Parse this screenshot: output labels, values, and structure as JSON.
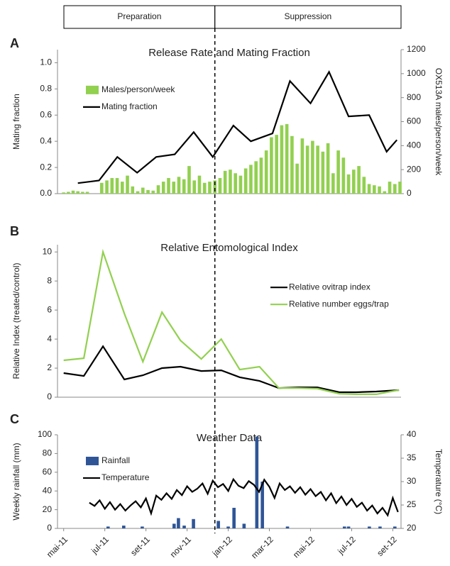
{
  "phases": [
    "Preparation",
    "Suppression"
  ],
  "phase_boundary": 7.35,
  "chart_data": [
    {
      "type": "bar",
      "panel": "A",
      "title": "Release Rate and Mating Fraction",
      "ylabel": "Mating fraction",
      "y2label": "OX513A males/person/week",
      "xlim": [
        -0.3,
        16.4
      ],
      "ylim": [
        0,
        1.1
      ],
      "yticks": [
        {
          "value": 0,
          "label": "0.0"
        },
        0.2,
        0.4,
        0.6,
        0.8,
        {
          "value": 1,
          "label": "1.0"
        }
      ],
      "y2lim": [
        0,
        1200
      ],
      "y2ticks": [
        0,
        200,
        400,
        600,
        800,
        1000,
        1200
      ],
      "legend": "upper left",
      "series": [
        {
          "name": "Males/person/week",
          "type": "bar",
          "axis": "y2",
          "color": "#92d050",
          "x": [
            0,
            0.23,
            0.46,
            0.69,
            0.92,
            1.15,
            1.85,
            2.1,
            2.35,
            2.6,
            2.85,
            3.1,
            3.35,
            3.6,
            3.85,
            4.1,
            4.35,
            4.6,
            4.85,
            5.1,
            5.35,
            5.6,
            5.85,
            6.1,
            6.35,
            6.6,
            6.85,
            7.1,
            7.35,
            7.6,
            7.85,
            8.1,
            8.35,
            8.6,
            8.85,
            9.1,
            9.35,
            9.6,
            9.85,
            10.1,
            10.35,
            10.6,
            10.85,
            11.1,
            11.35,
            11.6,
            11.85,
            12.1,
            12.35,
            12.6,
            12.85,
            13.1,
            13.35,
            13.6,
            13.85,
            14.1,
            14.35,
            14.6,
            14.85,
            15.1,
            15.35,
            15.6,
            15.85,
            16.1,
            16.35
          ],
          "values": [
            10,
            15,
            25,
            20,
            15,
            15,
            90,
            110,
            130,
            130,
            100,
            150,
            60,
            20,
            50,
            30,
            25,
            70,
            100,
            130,
            100,
            140,
            120,
            230,
            110,
            150,
            90,
            100,
            110,
            130,
            190,
            200,
            170,
            150,
            210,
            240,
            270,
            300,
            360,
            470,
            490,
            570,
            580,
            480,
            250,
            460,
            400,
            440,
            400,
            350,
            420,
            170,
            360,
            300,
            160,
            200,
            230,
            140,
            80,
            70,
            60,
            20,
            100,
            80,
            100
          ]
        },
        {
          "name": "Mating fraction",
          "type": "line",
          "color": "#000000",
          "x": [
            0.69,
            1.72,
            2.61,
            3.57,
            4.5,
            5.4,
            6.32,
            7.25,
            8.25,
            9.1,
            10.15,
            11.0,
            12.0,
            12.9,
            13.85,
            14.85,
            15.7,
            16.2
          ],
          "values": [
            0.08,
            0.1,
            0.28,
            0.16,
            0.28,
            0.3,
            0.47,
            0.28,
            0.52,
            0.4,
            0.46,
            0.86,
            0.69,
            0.93,
            0.59,
            0.6,
            0.32,
            0.41
          ]
        }
      ]
    },
    {
      "type": "line",
      "panel": "B",
      "title": "Relative Entomological Index",
      "ylabel": "Relative Index (treated/control)",
      "xlim": [
        -0.3,
        16.4
      ],
      "ylim": [
        0,
        10.5
      ],
      "yticks": [
        0,
        2,
        4,
        6,
        8,
        10
      ],
      "legend": "upper right",
      "series": [
        {
          "name": "Relative ovitrap index",
          "color": "#000000",
          "x": [
            0,
            0.98,
            1.91,
            2.95,
            3.85,
            4.78,
            5.68,
            6.69,
            7.66,
            8.56,
            9.52,
            10.46,
            11.43,
            12.33,
            13.4,
            14.2,
            15.2,
            16.3
          ],
          "values": [
            1.66,
            1.46,
            3.5,
            1.22,
            1.51,
            2.0,
            2.1,
            1.8,
            1.85,
            1.37,
            1.12,
            0.63,
            0.68,
            0.68,
            0.34,
            0.34,
            0.39,
            0.49
          ]
        },
        {
          "name": "Relative number eggs/trap",
          "color": "#92d050",
          "x": [
            0,
            0.98,
            1.91,
            2.95,
            3.85,
            4.78,
            5.68,
            6.69,
            7.66,
            8.56,
            9.52,
            10.46,
            11.43,
            12.33,
            13.4,
            14.2,
            15.2,
            16.3
          ],
          "values": [
            2.54,
            2.68,
            10.0,
            5.76,
            2.44,
            5.85,
            3.9,
            2.63,
            4.0,
            1.9,
            2.1,
            0.63,
            0.63,
            0.59,
            0.24,
            0.2,
            0.2,
            0.5
          ]
        }
      ]
    },
    {
      "type": "bar",
      "panel": "C",
      "title": "Weather Data",
      "ylabel": "Weekly rainfall (mm)",
      "y2label": "Temperature (°C)",
      "xlim": [
        -0.3,
        16.4
      ],
      "xticks": [
        {
          "value": 0,
          "label": "mai-11"
        },
        {
          "value": 2,
          "label": "jul-11"
        },
        {
          "value": 4,
          "label": "set-11"
        },
        {
          "value": 6,
          "label": "nov-11"
        },
        {
          "value": 8,
          "label": "jan-12"
        },
        {
          "value": 10,
          "label": "mar-12"
        },
        {
          "value": 12,
          "label": "mai-12"
        },
        {
          "value": 14,
          "label": "jul-12"
        },
        {
          "value": 16,
          "label": "set-12"
        }
      ],
      "ylim": [
        0,
        100
      ],
      "yticks": [
        0,
        20,
        40,
        60,
        80,
        100
      ],
      "y2lim": [
        20,
        40
      ],
      "y2ticks": [
        20,
        25,
        30,
        35,
        40
      ],
      "legend": "upper left",
      "series": [
        {
          "name": "Rainfall",
          "type": "bar",
          "color": "#2f5597",
          "x": [
            2.16,
            2.92,
            3.82,
            5.37,
            5.58,
            5.86,
            6.31,
            7.52,
            8.0,
            8.28,
            8.77,
            9.39,
            9.66,
            10.88,
            13.65,
            13.85,
            14.86,
            15.38,
            16.1
          ],
          "values": [
            2,
            3,
            2,
            5,
            11,
            3,
            10,
            8,
            2,
            22,
            5,
            98,
            50,
            2,
            2,
            2,
            2,
            2,
            2
          ]
        },
        {
          "name": "Temperature",
          "type": "line",
          "axis": "y2",
          "color": "#000000",
          "x": [
            1.25,
            1.5,
            1.75,
            2,
            2.25,
            2.5,
            2.75,
            3,
            3.25,
            3.5,
            3.75,
            4,
            4.25,
            4.5,
            4.75,
            5,
            5.25,
            5.5,
            5.75,
            6,
            6.25,
            6.5,
            6.75,
            7,
            7.25,
            7.5,
            7.75,
            8,
            8.25,
            8.5,
            8.75,
            9,
            9.25,
            9.5,
            9.75,
            10,
            10.25,
            10.5,
            10.75,
            11,
            11.25,
            11.5,
            11.75,
            12,
            12.25,
            12.5,
            12.75,
            13,
            13.25,
            13.5,
            13.75,
            14,
            14.25,
            14.5,
            14.75,
            15,
            15.25,
            15.5,
            15.75,
            16,
            16.25
          ],
          "values": [
            25.5,
            24.8,
            26.0,
            24.2,
            25.6,
            24.0,
            25.2,
            23.8,
            24.9,
            25.8,
            24.5,
            26.4,
            23.2,
            27.0,
            26.1,
            27.5,
            26.3,
            28.2,
            27.1,
            29.0,
            27.8,
            28.5,
            29.6,
            27.4,
            30.2,
            28.8,
            29.5,
            28.0,
            30.5,
            29.1,
            28.6,
            30.1,
            29.3,
            27.8,
            30.4,
            28.9,
            26.5,
            29.6,
            28.2,
            29.0,
            27.6,
            28.8,
            27.2,
            28.4,
            26.9,
            27.8,
            26.0,
            27.5,
            25.4,
            26.8,
            25.0,
            26.3,
            24.6,
            25.5,
            23.8,
            24.9,
            23.2,
            24.4,
            22.8,
            26.5,
            23.5
          ]
        }
      ]
    }
  ]
}
